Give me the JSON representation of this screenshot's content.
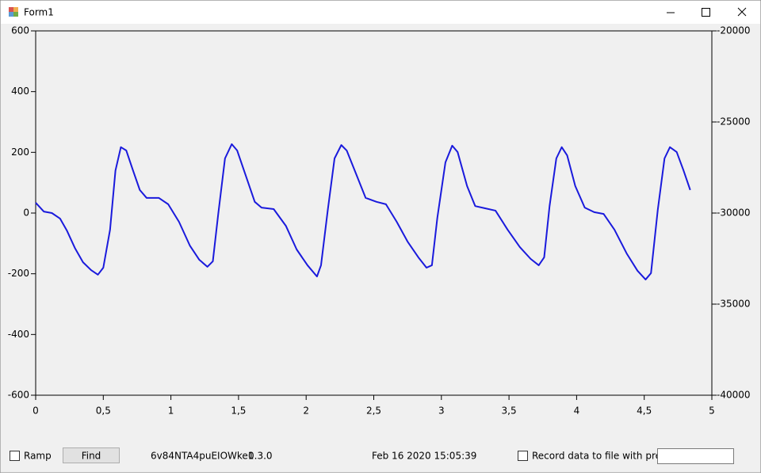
{
  "window": {
    "title": "Form1"
  },
  "chart_data": {
    "type": "line",
    "color": "#1a1adc",
    "x": [
      0,
      0.06,
      0.12,
      0.18,
      0.23,
      0.29,
      0.35,
      0.41,
      0.46,
      0.5,
      0.55,
      0.59,
      0.63,
      0.67,
      0.72,
      0.77,
      0.82,
      0.91,
      0.98,
      1.06,
      1.14,
      1.21,
      1.27,
      1.31,
      1.35,
      1.4,
      1.45,
      1.49,
      1.55,
      1.62,
      1.67,
      1.76,
      1.85,
      1.93,
      2.01,
      2.08,
      2.11,
      2.16,
      2.21,
      2.26,
      2.3,
      2.37,
      2.44,
      2.52,
      2.59,
      2.67,
      2.75,
      2.83,
      2.89,
      2.93,
      2.97,
      3.03,
      3.08,
      3.12,
      3.19,
      3.25,
      3.32,
      3.4,
      3.49,
      3.58,
      3.66,
      3.72,
      3.76,
      3.8,
      3.85,
      3.89,
      3.93,
      3.99,
      4.06,
      4.13,
      4.2,
      4.28,
      4.37,
      4.45,
      4.51,
      4.55,
      4.6,
      4.65,
      4.69,
      4.74,
      4.79,
      4.84
    ],
    "values": [
      34,
      5,
      0,
      -18,
      -57,
      -115,
      -162,
      -188,
      -203,
      -180,
      -55,
      140,
      217,
      206,
      140,
      76,
      50,
      50,
      29,
      -29,
      -107,
      -154,
      -177,
      -159,
      -3,
      180,
      227,
      206,
      128,
      37,
      18,
      13,
      -42,
      -120,
      -172,
      -209,
      -172,
      10,
      180,
      224,
      206,
      128,
      50,
      37,
      29,
      -29,
      -94,
      -146,
      -180,
      -172,
      -16,
      167,
      222,
      201,
      89,
      23,
      16,
      8,
      -55,
      -112,
      -151,
      -172,
      -146,
      23,
      180,
      217,
      190,
      89,
      18,
      3,
      -3,
      -55,
      -133,
      -190,
      -219,
      -198,
      10,
      180,
      217,
      201,
      141,
      76
    ],
    "xlim": [
      0,
      5
    ],
    "xticks": [
      0,
      {
        "value": 0.5,
        "label": "0,5"
      },
      1,
      {
        "value": 1.5,
        "label": "1,5"
      },
      2,
      {
        "value": 2.5,
        "label": "2,5"
      },
      3,
      {
        "value": 3.5,
        "label": "3,5"
      },
      4,
      {
        "value": 4.5,
        "label": "4,5"
      },
      5
    ],
    "ylim": [
      -600,
      600
    ],
    "yticks": [
      -600,
      -400,
      -200,
      0,
      200,
      400,
      600
    ],
    "y2lim": [
      -40000,
      -20000
    ],
    "y2ticks": [
      -40000,
      -35000,
      -30000,
      -25000,
      -20000
    ]
  },
  "controls": {
    "ramp_label": "Ramp",
    "find_button": "Find",
    "device_id": "6v84NTA4puEIOWke1",
    "version": "0.3.0",
    "timestamp": "Feb 16 2020 15:05:39",
    "record_label": "Record data to file with prefix"
  }
}
